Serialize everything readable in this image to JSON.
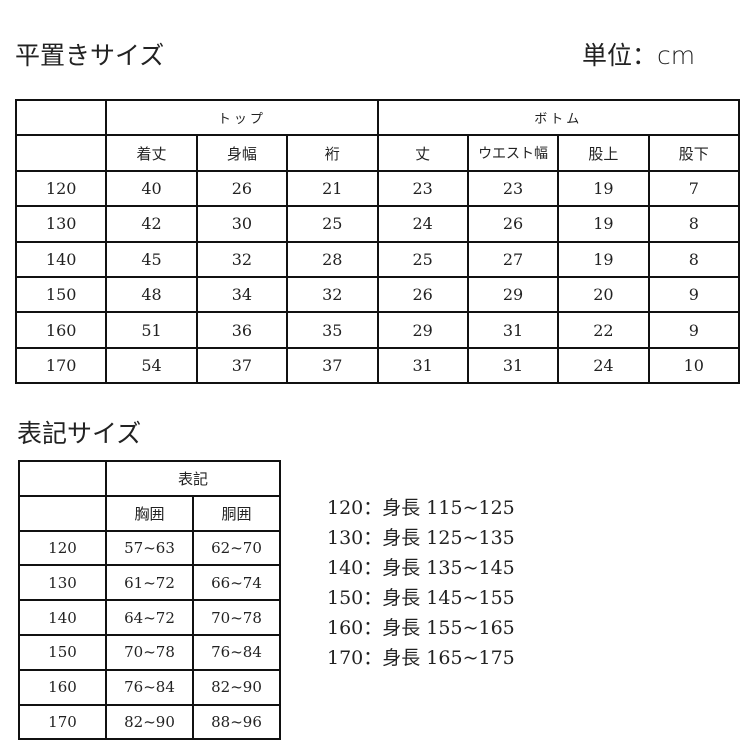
{
  "header": {
    "title": "平置きサイズ",
    "unit": "単位：cm"
  },
  "flat_table": {
    "groups": [
      "トップ",
      "ボトム"
    ],
    "columns": [
      "着丈",
      "身幅",
      "裄",
      "丈",
      "ウエスト幅",
      "股上",
      "股下"
    ],
    "rows": [
      {
        "size": "120",
        "values": [
          "40",
          "26",
          "21",
          "23",
          "23",
          "19",
          "7"
        ]
      },
      {
        "size": "130",
        "values": [
          "42",
          "30",
          "25",
          "24",
          "26",
          "19",
          "8"
        ]
      },
      {
        "size": "140",
        "values": [
          "45",
          "32",
          "28",
          "25",
          "27",
          "19",
          "8"
        ]
      },
      {
        "size": "150",
        "values": [
          "48",
          "34",
          "32",
          "26",
          "29",
          "20",
          "9"
        ]
      },
      {
        "size": "160",
        "values": [
          "51",
          "36",
          "35",
          "29",
          "31",
          "22",
          "9"
        ]
      },
      {
        "size": "170",
        "values": [
          "54",
          "37",
          "37",
          "31",
          "31",
          "24",
          "10"
        ]
      }
    ]
  },
  "label_section": {
    "title": "表記サイズ"
  },
  "label_table": {
    "group": "表記",
    "columns": [
      "胸囲",
      "胴囲"
    ],
    "rows": [
      {
        "size": "120",
        "values": [
          "57~63",
          "62~70"
        ]
      },
      {
        "size": "130",
        "values": [
          "61~72",
          "66~74"
        ]
      },
      {
        "size": "140",
        "values": [
          "64~72",
          "70~78"
        ]
      },
      {
        "size": "150",
        "values": [
          "70~78",
          "76~84"
        ]
      },
      {
        "size": "160",
        "values": [
          "76~84",
          "82~90"
        ]
      },
      {
        "size": "170",
        "values": [
          "82~90",
          "88~96"
        ]
      }
    ]
  },
  "height_list": [
    "120：身長 115~125",
    "130：身長 125~135",
    "140：身長 135~145",
    "150：身長 145~155",
    "160：身長 155~165",
    "170：身長 165~175"
  ]
}
